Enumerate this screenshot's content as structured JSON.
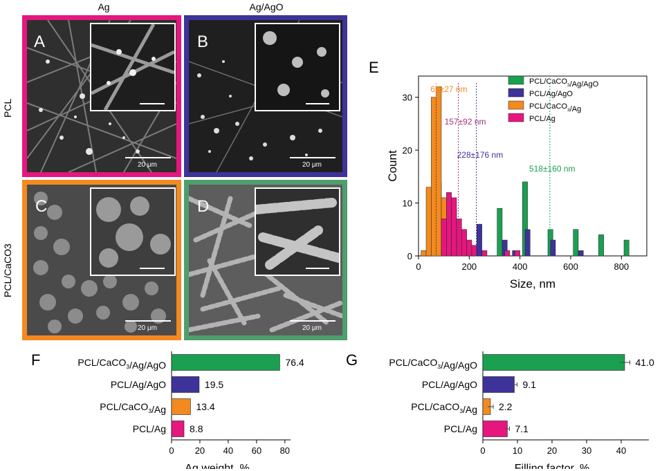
{
  "figure": {
    "column_labels": [
      "Ag",
      "Ag/AgO"
    ],
    "row_labels": [
      "PCL",
      "PCL/CaCO3"
    ],
    "panel_letters": [
      "A",
      "B",
      "C",
      "D",
      "E",
      "F",
      "G"
    ],
    "scale_bar_label": "20 μm",
    "panel_colors": {
      "A": "#e5177e",
      "B": "#3d3399",
      "C": "#f28a20",
      "D": "#4e9e6e"
    }
  },
  "chart_data": [
    {
      "id": "E",
      "type": "bar",
      "xlabel": "Size, nm",
      "ylabel": "Count",
      "xlim": [
        0,
        900
      ],
      "ylim": [
        0,
        34
      ],
      "xticks": [
        0,
        200,
        400,
        600,
        800
      ],
      "yticks": [
        0,
        10,
        20,
        30
      ],
      "legend_position": "top-right",
      "series": [
        {
          "name": "PCL/CaCO₃/Ag/AgO",
          "color": "#1aa050",
          "x": [
            320,
            420,
            520,
            620,
            720,
            820
          ],
          "values": [
            9,
            14,
            5,
            5,
            4,
            3
          ]
        },
        {
          "name": "PCL/Ag/AgO",
          "color": "#3d3399",
          "x": [
            60,
            80,
            100,
            120,
            140,
            160,
            180,
            240,
            340,
            380,
            430,
            530,
            640
          ],
          "values": [
            10,
            14,
            10,
            7,
            9,
            4,
            3,
            6,
            3,
            1,
            5,
            3,
            1
          ]
        },
        {
          "name": "PCL/CaCO₃/Ag",
          "color": "#f28a20",
          "x": [
            20,
            40,
            60,
            80,
            100
          ],
          "values": [
            1,
            13,
            30,
            32,
            11
          ]
        },
        {
          "name": "PCL/Ag",
          "color": "#e5177e",
          "x": [
            100,
            120,
            140,
            160,
            180,
            200,
            220,
            260,
            350,
            390
          ],
          "values": [
            7,
            12,
            11,
            7,
            5,
            3,
            2,
            1,
            1,
            1
          ]
        }
      ],
      "annotations": [
        {
          "label": "69±27 nm",
          "x": 69,
          "color": "#f28a20"
        },
        {
          "label": "157±92 nm",
          "x": 157,
          "color": "#a0307e"
        },
        {
          "label": "228±176 nm",
          "x": 228,
          "color": "#3d3399"
        },
        {
          "label": "518±160 nm",
          "x": 518,
          "color": "#1aa050"
        }
      ]
    },
    {
      "id": "F",
      "type": "bar",
      "orientation": "horizontal",
      "xlabel": "Ag weight, %",
      "xlim": [
        0,
        84
      ],
      "xticks": [
        0,
        20,
        40,
        60,
        80
      ],
      "categories": [
        "PCL/CaCO₃/Ag/AgO",
        "PCL/Ag/AgO",
        "PCL/CaCO₃/Ag",
        "PCL/Ag"
      ],
      "values": [
        76.4,
        19.5,
        13.4,
        8.8
      ],
      "value_labels": [
        "76.4",
        "19.5",
        "13.4",
        "8.8"
      ],
      "colors": [
        "#1aa050",
        "#3d3399",
        "#f28a20",
        "#e5177e"
      ]
    },
    {
      "id": "G",
      "type": "bar",
      "orientation": "horizontal",
      "xlabel": "Filling factor, %",
      "xlim": [
        0,
        48
      ],
      "xticks": [
        0,
        10,
        20,
        30,
        40
      ],
      "categories": [
        "PCL/CaCO₃/Ag/AgO",
        "PCL/Ag/AgO",
        "PCL/CaCO₃/Ag",
        "PCL/Ag"
      ],
      "values": [
        41.0,
        9.1,
        2.2,
        7.1
      ],
      "errors": [
        1.5,
        0.8,
        0.8,
        0.6
      ],
      "value_labels": [
        "41.0",
        "9.1",
        "2.2",
        "7.1"
      ],
      "colors": [
        "#1aa050",
        "#3d3399",
        "#f28a20",
        "#e5177e"
      ]
    }
  ]
}
